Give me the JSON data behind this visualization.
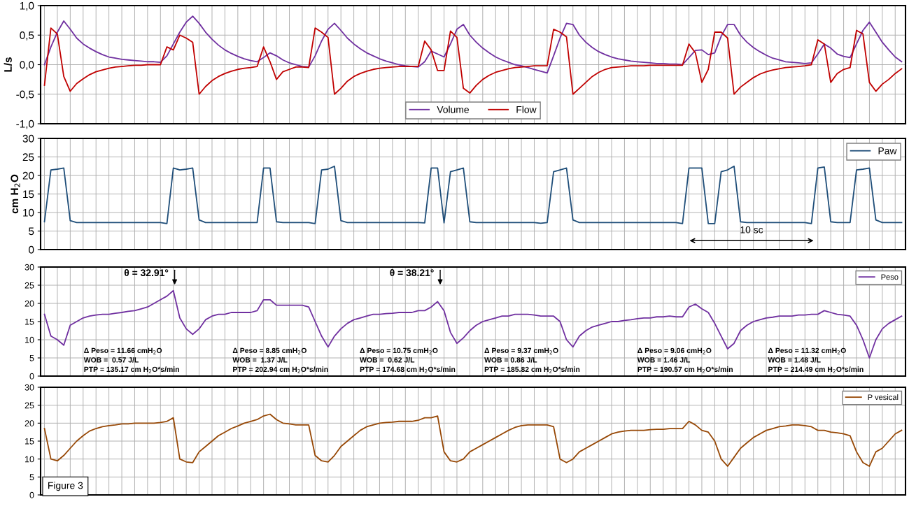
{
  "chart_data": [
    {
      "type": "line",
      "ylabel": "L/s",
      "ylim": [
        -1.0,
        1.0
      ],
      "yticks": [
        {
          "value": -1.0,
          "label": "-1,0"
        },
        {
          "value": -0.5,
          "label": "-0,5"
        },
        {
          "value": 0.0,
          "label": "0,0"
        },
        {
          "value": 0.5,
          "label": "0,5"
        },
        {
          "value": 1.0,
          "label": "1,0"
        }
      ],
      "grid": true,
      "legend": "bottom",
      "tick_labels": "y",
      "categories": [
        null,
        null,
        null,
        null,
        null,
        null,
        null,
        null,
        null,
        null,
        null,
        null,
        null,
        null,
        null,
        null,
        null,
        null,
        null,
        null,
        null,
        null,
        null,
        null,
        null,
        null,
        null,
        null,
        null,
        null,
        null,
        null,
        null,
        null,
        null,
        null,
        null,
        null,
        null,
        null,
        null,
        null,
        null,
        null,
        null,
        null,
        null,
        null,
        null,
        null,
        null,
        null,
        null,
        null,
        null,
        null,
        null,
        null,
        null,
        null,
        null,
        null,
        null,
        null,
        null,
        null,
        null,
        null,
        null,
        null,
        null,
        null,
        null,
        null,
        null,
        null,
        null,
        null,
        null,
        null,
        null,
        null,
        null,
        null,
        null,
        null,
        null,
        null,
        null,
        null,
        null,
        null,
        null,
        null,
        null,
        null,
        null,
        null,
        null,
        null,
        null,
        null,
        null,
        null,
        null,
        null,
        null,
        null,
        null,
        null,
        null,
        null,
        null,
        null,
        null,
        null,
        null,
        null,
        null,
        null,
        null,
        null,
        null,
        null,
        null,
        null,
        null,
        null,
        null,
        null,
        null,
        null,
        null,
        null
      ],
      "series": [
        {
          "name": "Volume",
          "color": "#7030a0",
          "values": [
            0.0,
            0.3,
            0.55,
            0.74,
            0.6,
            0.45,
            0.35,
            0.28,
            0.22,
            0.17,
            0.13,
            0.11,
            0.09,
            0.08,
            0.07,
            0.06,
            0.05,
            0.05,
            0.04,
            0.15,
            0.35,
            0.55,
            0.72,
            0.82,
            0.7,
            0.55,
            0.43,
            0.33,
            0.25,
            0.19,
            0.14,
            0.1,
            0.07,
            0.05,
            0.12,
            0.2,
            0.15,
            0.08,
            0.03,
            0.0,
            -0.03,
            -0.04,
            0.15,
            0.4,
            0.6,
            0.7,
            0.58,
            0.45,
            0.35,
            0.27,
            0.2,
            0.15,
            0.1,
            0.06,
            0.03,
            0.0,
            -0.02,
            -0.03,
            -0.04,
            0.05,
            0.23,
            0.18,
            0.13,
            0.35,
            0.6,
            0.68,
            0.5,
            0.38,
            0.28,
            0.2,
            0.13,
            0.08,
            0.04,
            0.0,
            -0.02,
            -0.05,
            -0.08,
            -0.11,
            -0.14,
            0.15,
            0.45,
            0.7,
            0.68,
            0.5,
            0.38,
            0.29,
            0.22,
            0.17,
            0.13,
            0.1,
            0.08,
            0.06,
            0.05,
            0.04,
            0.03,
            0.02,
            0.02,
            0.01,
            0.01,
            0.0,
            0.12,
            0.24,
            0.25,
            0.17,
            0.2,
            0.48,
            0.68,
            0.68,
            0.5,
            0.38,
            0.29,
            0.22,
            0.16,
            0.11,
            0.08,
            0.05,
            0.04,
            0.03,
            0.02,
            0.03,
            0.18,
            0.35,
            0.28,
            0.18,
            0.14,
            0.12,
            0.35,
            0.58,
            0.72,
            0.55,
            0.38,
            0.25,
            0.13,
            0.05
          ]
        },
        {
          "name": "Flow",
          "color": "#c00000",
          "values": [
            -0.35,
            0.62,
            0.52,
            -0.2,
            -0.45,
            -0.32,
            -0.24,
            -0.17,
            -0.12,
            -0.09,
            -0.06,
            -0.04,
            -0.03,
            -0.02,
            -0.01,
            -0.01,
            0.0,
            0.0,
            0.0,
            0.3,
            0.25,
            0.5,
            0.45,
            0.38,
            -0.5,
            -0.37,
            -0.27,
            -0.2,
            -0.15,
            -0.11,
            -0.08,
            -0.06,
            -0.05,
            -0.03,
            0.3,
            0.05,
            -0.25,
            -0.12,
            -0.08,
            -0.04,
            -0.04,
            -0.05,
            0.62,
            0.55,
            0.46,
            -0.5,
            -0.4,
            -0.28,
            -0.2,
            -0.15,
            -0.11,
            -0.08,
            -0.06,
            -0.05,
            -0.04,
            -0.03,
            -0.03,
            -0.03,
            -0.03,
            0.4,
            0.25,
            -0.1,
            -0.1,
            0.57,
            0.46,
            -0.4,
            -0.48,
            -0.35,
            -0.25,
            -0.18,
            -0.13,
            -0.1,
            -0.07,
            -0.05,
            -0.04,
            -0.03,
            -0.02,
            -0.02,
            -0.02,
            0.6,
            0.55,
            0.47,
            -0.5,
            -0.4,
            -0.3,
            -0.2,
            -0.13,
            -0.08,
            -0.05,
            -0.04,
            -0.03,
            -0.02,
            -0.02,
            -0.02,
            -0.01,
            -0.01,
            -0.01,
            -0.01,
            -0.01,
            -0.01,
            0.35,
            0.2,
            -0.3,
            -0.08,
            0.55,
            0.55,
            0.45,
            -0.5,
            -0.38,
            -0.3,
            -0.22,
            -0.16,
            -0.12,
            -0.09,
            -0.07,
            -0.05,
            -0.04,
            -0.03,
            -0.02,
            0.0,
            0.42,
            0.35,
            -0.3,
            -0.15,
            -0.08,
            -0.05,
            0.58,
            0.52,
            -0.3,
            -0.45,
            -0.33,
            -0.25,
            -0.15,
            -0.07
          ]
        }
      ]
    },
    {
      "type": "line",
      "ylabel": "cm H$_{2}$O",
      "ylim": [
        0,
        30
      ],
      "yticks": [
        0,
        5,
        10,
        15,
        20,
        25,
        30
      ],
      "grid": true,
      "legend": "top right",
      "tick_labels": "y",
      "annotations": [
        "10 sc"
      ],
      "categories": [
        null,
        null,
        null,
        null,
        null,
        null,
        null,
        null,
        null,
        null,
        null,
        null,
        null,
        null,
        null,
        null,
        null,
        null,
        null,
        null,
        null,
        null,
        null,
        null,
        null,
        null,
        null,
        null,
        null,
        null,
        null,
        null,
        null,
        null,
        null,
        null,
        null,
        null,
        null,
        null,
        null,
        null,
        null,
        null,
        null,
        null,
        null,
        null,
        null,
        null,
        null,
        null,
        null,
        null,
        null,
        null,
        null,
        null,
        null,
        null,
        null,
        null,
        null,
        null,
        null,
        null,
        null,
        null,
        null,
        null,
        null,
        null,
        null,
        null,
        null,
        null,
        null,
        null,
        null,
        null,
        null,
        null,
        null,
        null,
        null,
        null,
        null,
        null,
        null,
        null,
        null,
        null,
        null,
        null,
        null,
        null,
        null,
        null,
        null,
        null,
        null,
        null,
        null,
        null,
        null,
        null,
        null,
        null,
        null,
        null,
        null,
        null,
        null,
        null,
        null,
        null,
        null,
        null,
        null,
        null,
        null,
        null,
        null,
        null,
        null,
        null,
        null,
        null,
        null,
        null,
        null,
        null,
        null,
        null
      ],
      "series": [
        {
          "name": "Paw",
          "color": "#1f4e79",
          "values": [
            7.5,
            21.5,
            21.7,
            22,
            7.8,
            7.3,
            7.3,
            7.3,
            7.3,
            7.3,
            7.3,
            7.3,
            7.3,
            7.3,
            7.3,
            7.3,
            7.3,
            7.3,
            7.3,
            7,
            22,
            21.5,
            21.7,
            22,
            8,
            7.3,
            7.3,
            7.3,
            7.3,
            7.3,
            7.3,
            7.3,
            7.3,
            7.3,
            22,
            22,
            7.5,
            7.3,
            7.3,
            7.3,
            7.3,
            7.3,
            7,
            21.5,
            21.7,
            22.5,
            7.8,
            7.3,
            7.3,
            7.3,
            7.3,
            7.3,
            7.3,
            7.3,
            7.3,
            7.3,
            7.3,
            7.3,
            7.3,
            7.2,
            22,
            22,
            7.2,
            21,
            21.5,
            22,
            7.5,
            7.3,
            7.3,
            7.3,
            7.3,
            7.3,
            7.3,
            7.3,
            7.3,
            7.3,
            7.3,
            7.1,
            7.3,
            21,
            21.5,
            22,
            8,
            7.3,
            7.3,
            7.3,
            7.3,
            7.3,
            7.3,
            7.3,
            7.3,
            7.3,
            7.3,
            7.3,
            7.3,
            7.3,
            7.3,
            7.3,
            7.3,
            7,
            22,
            22,
            22,
            7,
            7,
            21,
            21.5,
            22.5,
            7.5,
            7.3,
            7.3,
            7.3,
            7.3,
            7.3,
            7.3,
            7.3,
            7.3,
            7.3,
            7.3,
            7,
            22,
            22.3,
            7.5,
            7.3,
            7.3,
            7.3,
            21.5,
            21.7,
            22,
            8,
            7.3,
            7.3,
            7.3,
            7.3
          ]
        }
      ]
    },
    {
      "type": "line",
      "ylim": [
        0,
        30
      ],
      "yticks": [
        0,
        5,
        10,
        15,
        20,
        25,
        30
      ],
      "grid": true,
      "legend": "top right",
      "tick_labels": "y",
      "annotations": [
        "θ = 32.91°",
        "θ = 38.21°",
        "Δ Peso = 11.66 cmH$_{2}$O\nWOB =  0.57 J/L\nPTP = 135.17 cm H$_{2}$O*s/min",
        "Δ Peso = 8.85 cmH$_{2}$O\nWOB =  1.37 J/L\nPTP = 202.94 cm H$_{2}$O*s/min",
        "Δ Peso = 10.75 cmH$_{2}$O\nWOB =  0.62 J/L\nPTP = 174.68 cm H$_{2}$O*s/min",
        "Δ Peso = 9.37 cmH$_{2}$O\nWOB = 0.86 J/L\nPTP = 185.82 cm H$_{2}$O*s/min",
        "Δ Peso = 9.06 cmH$_{2}$O\nWOB = 1.46 J/L\nPTP = 190.57 cm H$_{2}$O*s/min",
        "Δ Peso = 11.32 cmH$_{2}$O\nWOB = 1.48 J/L\nPTP = 214.49 cm H$_{2}$O*s/min"
      ],
      "categories": [
        null,
        null,
        null,
        null,
        null,
        null,
        null,
        null,
        null,
        null,
        null,
        null,
        null,
        null,
        null,
        null,
        null,
        null,
        null,
        null,
        null,
        null,
        null,
        null,
        null,
        null,
        null,
        null,
        null,
        null,
        null,
        null,
        null,
        null,
        null,
        null,
        null,
        null,
        null,
        null,
        null,
        null,
        null,
        null,
        null,
        null,
        null,
        null,
        null,
        null,
        null,
        null,
        null,
        null,
        null,
        null,
        null,
        null,
        null,
        null,
        null,
        null,
        null,
        null,
        null,
        null,
        null,
        null,
        null,
        null,
        null,
        null,
        null,
        null,
        null,
        null,
        null,
        null,
        null,
        null,
        null,
        null,
        null,
        null,
        null,
        null,
        null,
        null,
        null,
        null,
        null,
        null,
        null,
        null,
        null,
        null,
        null,
        null,
        null,
        null,
        null,
        null,
        null,
        null,
        null,
        null,
        null,
        null,
        null,
        null,
        null,
        null,
        null,
        null,
        null,
        null,
        null,
        null,
        null,
        null,
        null,
        null,
        null,
        null,
        null,
        null,
        null,
        null,
        null,
        null,
        null,
        null,
        null,
        null
      ],
      "series": [
        {
          "name": "Peso",
          "color": "#7030a0",
          "values": [
            17,
            11,
            10,
            8.5,
            14,
            15,
            16,
            16.5,
            16.8,
            17,
            17,
            17.3,
            17.5,
            17.8,
            18,
            18.5,
            19,
            20,
            21,
            22,
            23.5,
            16,
            13,
            11.5,
            13,
            15.5,
            16.5,
            17,
            17,
            17.5,
            17.5,
            17.5,
            17.5,
            18,
            21,
            21,
            19.5,
            19.5,
            19.5,
            19.5,
            19.5,
            19,
            15,
            11,
            8,
            11,
            13,
            14.5,
            15.5,
            16,
            16.5,
            17,
            17,
            17.2,
            17.3,
            17.5,
            17.5,
            17.5,
            18,
            18,
            19,
            20.5,
            18,
            12,
            9,
            10.5,
            12.5,
            14,
            15,
            15.5,
            16,
            16.5,
            16.5,
            17,
            17,
            17,
            16.8,
            16.5,
            16.5,
            16.5,
            15,
            10,
            8,
            11,
            12.5,
            13.5,
            14,
            14.5,
            15,
            15,
            15.3,
            15.5,
            15.8,
            16,
            16,
            16.3,
            16.3,
            16.5,
            16.3,
            16.3,
            19,
            19.8,
            18.5,
            17.5,
            14.5,
            11,
            7.5,
            9,
            12.5,
            14,
            15,
            15.5,
            16,
            16.2,
            16.5,
            16.5,
            16.5,
            16.8,
            16.8,
            17,
            17,
            18,
            17.5,
            17,
            16.8,
            16.5,
            14,
            10,
            5,
            10,
            13,
            14.5,
            15.5,
            16.5
          ]
        }
      ]
    },
    {
      "type": "line",
      "ylim": [
        0,
        30
      ],
      "yticks": [
        0,
        5,
        10,
        15,
        20,
        25,
        30
      ],
      "grid": true,
      "legend": "top right",
      "tick_labels": "y",
      "annotations": [
        "Figure 3"
      ],
      "categories": [
        null,
        null,
        null,
        null,
        null,
        null,
        null,
        null,
        null,
        null,
        null,
        null,
        null,
        null,
        null,
        null,
        null,
        null,
        null,
        null,
        null,
        null,
        null,
        null,
        null,
        null,
        null,
        null,
        null,
        null,
        null,
        null,
        null,
        null,
        null,
        null,
        null,
        null,
        null,
        null,
        null,
        null,
        null,
        null,
        null,
        null,
        null,
        null,
        null,
        null,
        null,
        null,
        null,
        null,
        null,
        null,
        null,
        null,
        null,
        null,
        null,
        null,
        null,
        null,
        null,
        null,
        null,
        null,
        null,
        null,
        null,
        null,
        null,
        null,
        null,
        null,
        null,
        null,
        null,
        null,
        null,
        null,
        null,
        null,
        null,
        null,
        null,
        null,
        null,
        null,
        null,
        null,
        null,
        null,
        null,
        null,
        null,
        null,
        null,
        null,
        null,
        null,
        null,
        null,
        null,
        null,
        null,
        null,
        null,
        null,
        null,
        null,
        null,
        null,
        null,
        null,
        null,
        null,
        null,
        null,
        null,
        null,
        null,
        null,
        null,
        null,
        null,
        null,
        null,
        null,
        null,
        null,
        null,
        null
      ],
      "series": [
        {
          "name": "P vesical",
          "color": "#974806",
          "values": [
            18.5,
            10,
            9.5,
            11,
            13,
            15,
            16.5,
            17.8,
            18.5,
            19,
            19.3,
            19.5,
            19.8,
            19.8,
            20,
            20,
            20,
            20,
            20.2,
            20.5,
            21.5,
            10,
            9.2,
            9,
            12,
            13.5,
            15,
            16.5,
            17.5,
            18.5,
            19.2,
            20,
            20.5,
            21,
            22,
            22.5,
            21,
            20,
            19.8,
            19.5,
            19.5,
            19.5,
            11,
            9.5,
            9.2,
            11,
            13.5,
            15,
            16.5,
            18,
            19,
            19.5,
            20,
            20.2,
            20.3,
            20.5,
            20.5,
            20.5,
            20.8,
            21.5,
            21.5,
            22,
            12,
            9.5,
            9.2,
            10,
            12,
            13,
            14,
            15,
            16,
            17,
            18,
            18.8,
            19.3,
            19.5,
            19.5,
            19.5,
            19.5,
            19,
            10,
            9,
            10,
            12,
            13,
            14,
            15,
            16,
            17,
            17.5,
            17.8,
            18,
            18,
            18,
            18.2,
            18.3,
            18.3,
            18.5,
            18.5,
            18.5,
            20.5,
            19.5,
            18,
            17.5,
            15,
            10,
            8,
            10.5,
            13,
            14.5,
            16,
            17,
            18,
            18.5,
            19,
            19.2,
            19.5,
            19.5,
            19.3,
            19,
            18,
            18,
            17.5,
            17.3,
            17,
            16.5,
            12,
            9,
            8,
            12,
            13,
            15,
            17,
            18
          ]
        }
      ]
    }
  ]
}
